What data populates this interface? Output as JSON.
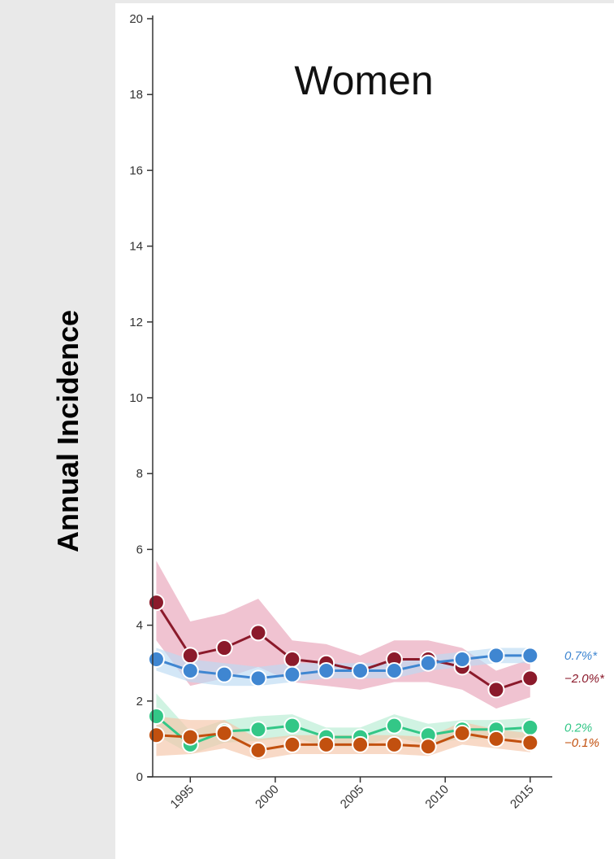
{
  "chart_data": {
    "type": "line",
    "title": "Women",
    "ylabel": "Annual Incidence",
    "xlabel": "",
    "ylim": [
      0,
      20
    ],
    "yticks": [
      0,
      2,
      4,
      6,
      8,
      10,
      12,
      14,
      16,
      18,
      20
    ],
    "xticks": [
      1995,
      2000,
      2005,
      2010,
      2015
    ],
    "xlim": [
      1992.5,
      2016.3
    ],
    "grid": false,
    "x": [
      1993,
      1995,
      1997,
      1999,
      2001,
      2003,
      2005,
      2007,
      2009,
      2011,
      2013,
      2015
    ],
    "series": [
      {
        "color": "#8b1a2b",
        "band_color": "#e8a3b9",
        "end_label": "−2.0%*",
        "values": [
          4.6,
          3.2,
          3.4,
          3.8,
          3.1,
          3.0,
          2.8,
          3.1,
          3.1,
          2.9,
          2.3,
          2.6
        ],
        "lower": [
          3.6,
          2.4,
          2.6,
          2.9,
          2.5,
          2.4,
          2.3,
          2.5,
          2.5,
          2.3,
          1.8,
          2.1
        ],
        "upper": [
          5.7,
          4.1,
          4.3,
          4.7,
          3.6,
          3.5,
          3.2,
          3.6,
          3.6,
          3.4,
          2.8,
          3.1
        ]
      },
      {
        "color": "#3f86d1",
        "band_color": "#bcdaf3",
        "end_label": "0.7%*",
        "values": [
          3.1,
          2.8,
          2.7,
          2.6,
          2.7,
          2.8,
          2.8,
          2.8,
          3.0,
          3.1,
          3.2,
          3.2
        ],
        "lower": [
          2.8,
          2.5,
          2.4,
          2.4,
          2.5,
          2.6,
          2.6,
          2.6,
          2.8,
          2.9,
          3.0,
          3.0
        ],
        "upper": [
          3.4,
          3.1,
          3.0,
          2.9,
          3.0,
          3.0,
          3.0,
          3.0,
          3.2,
          3.3,
          3.4,
          3.4
        ]
      },
      {
        "color": "#33c787",
        "band_color": "#b7ecd3",
        "end_label": "0.2%",
        "values": [
          1.6,
          0.85,
          1.2,
          1.25,
          1.35,
          1.05,
          1.05,
          1.35,
          1.1,
          1.25,
          1.25,
          1.3
        ],
        "lower": [
          1.1,
          0.6,
          0.9,
          0.95,
          1.05,
          0.8,
          0.8,
          1.05,
          0.85,
          1.0,
          1.0,
          1.05
        ],
        "upper": [
          2.2,
          1.2,
          1.5,
          1.6,
          1.65,
          1.3,
          1.3,
          1.65,
          1.4,
          1.5,
          1.5,
          1.55
        ]
      },
      {
        "color": "#c2500f",
        "band_color": "#f5c5a8",
        "end_label": "−0.1%",
        "values": [
          1.1,
          1.05,
          1.15,
          0.7,
          0.85,
          0.85,
          0.85,
          0.85,
          0.8,
          1.15,
          1.0,
          0.9
        ],
        "lower": [
          0.55,
          0.6,
          0.75,
          0.45,
          0.6,
          0.6,
          0.6,
          0.6,
          0.55,
          0.85,
          0.75,
          0.65
        ],
        "upper": [
          1.6,
          1.5,
          1.5,
          1.0,
          1.1,
          1.1,
          1.1,
          1.1,
          1.05,
          1.45,
          1.25,
          1.15
        ]
      }
    ]
  }
}
